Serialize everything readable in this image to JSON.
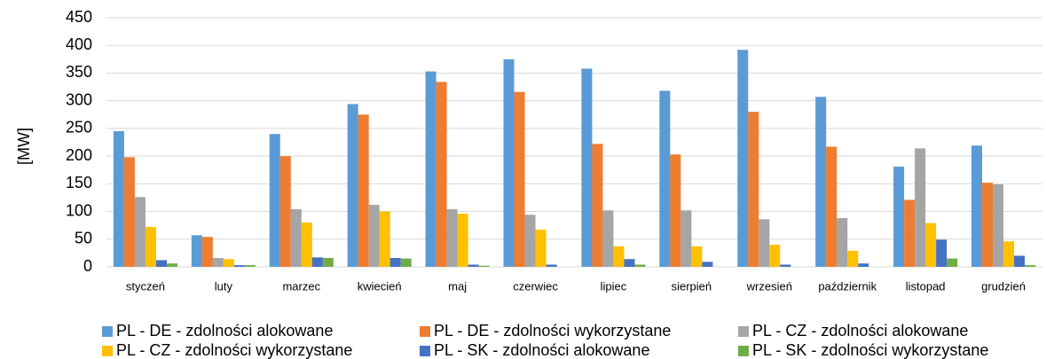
{
  "chart_data": {
    "type": "bar",
    "y_label": "[MW]",
    "categories": [
      "styczeń",
      "luty",
      "marzec",
      "kwiecień",
      "maj",
      "czerwiec",
      "lipiec",
      "sierpień",
      "wrzesień",
      "październik",
      "listopad",
      "grudzień"
    ],
    "series": [
      {
        "name": "PL - DE - zdolności alokowane",
        "color": "#5b9bd5",
        "values": [
          245,
          57,
          240,
          294,
          353,
          375,
          358,
          318,
          392,
          307,
          181,
          219
        ]
      },
      {
        "name": "PL - DE - zdolności wykorzystane",
        "color": "#ed7d31",
        "values": [
          198,
          54,
          200,
          275,
          334,
          316,
          222,
          203,
          280,
          217,
          121,
          152
        ]
      },
      {
        "name": "PL - CZ - zdolności alokowane",
        "color": "#a5a5a5",
        "values": [
          126,
          16,
          104,
          112,
          104,
          94,
          102,
          102,
          86,
          88,
          214,
          149
        ]
      },
      {
        "name": "PL - CZ - zdolności wykorzystane",
        "color": "#ffc000",
        "values": [
          72,
          14,
          80,
          100,
          96,
          67,
          37,
          37,
          40,
          29,
          79,
          46
        ]
      },
      {
        "name": "PL - SK - zdolności alokowane",
        "color": "#4472c4",
        "values": [
          12,
          3,
          17,
          16,
          4,
          4,
          14,
          9,
          4,
          6,
          49,
          20
        ]
      },
      {
        "name": "PL - SK - zdolności wykorzystane",
        "color": "#70ad47",
        "values": [
          6,
          3,
          16,
          15,
          2,
          0,
          4,
          0,
          0,
          0,
          15,
          3
        ]
      }
    ],
    "ylim": [
      0,
      450
    ],
    "yticks": [
      0,
      50,
      100,
      150,
      200,
      250,
      300,
      350,
      400,
      450
    ],
    "grid": true,
    "legend": "bottom"
  }
}
